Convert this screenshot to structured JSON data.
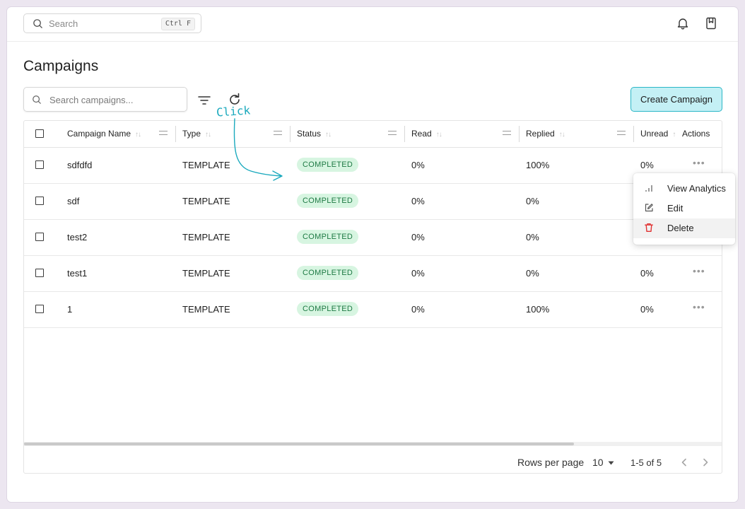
{
  "topbar": {
    "search_placeholder": "Search",
    "search_shortcut": "Ctrl F",
    "icons": [
      "bell-icon",
      "bookmark-icon"
    ]
  },
  "page": {
    "title": "Campaigns",
    "search_placeholder": "Search campaigns...",
    "create_label": "Create Campaign",
    "annotation": "Click"
  },
  "table": {
    "headers": {
      "name": "Campaign Name",
      "type": "Type",
      "status": "Status",
      "read": "Read",
      "replied": "Replied",
      "unread": "Unread",
      "actions": "Actions"
    },
    "rows": [
      {
        "name": "sdfdfd",
        "type": "TEMPLATE",
        "status": "COMPLETED",
        "read": "0%",
        "replied": "100%",
        "unread": "0%"
      },
      {
        "name": "sdf",
        "type": "TEMPLATE",
        "status": "COMPLETED",
        "read": "0%",
        "replied": "0%",
        "unread": ""
      },
      {
        "name": "test2",
        "type": "TEMPLATE",
        "status": "COMPLETED",
        "read": "0%",
        "replied": "0%",
        "unread": ""
      },
      {
        "name": "test1",
        "type": "TEMPLATE",
        "status": "COMPLETED",
        "read": "0%",
        "replied": "0%",
        "unread": "0%"
      },
      {
        "name": "1",
        "type": "TEMPLATE",
        "status": "COMPLETED",
        "read": "0%",
        "replied": "100%",
        "unread": "0%"
      }
    ],
    "actions_glyph": "•••"
  },
  "context_menu": {
    "items": [
      {
        "label": "View Analytics",
        "icon": "bar-chart-icon"
      },
      {
        "label": "Edit",
        "icon": "edit-icon"
      },
      {
        "label": "Delete",
        "icon": "trash-icon",
        "color": "#e03131"
      }
    ]
  },
  "pagination": {
    "rows_per_page_label": "Rows per page",
    "rows_per_page": "10",
    "range": "1-5 of 5"
  },
  "colors": {
    "accent": "#2ab6c6",
    "accent_bg": "#c4f0f5",
    "badge_bg": "#d7f5e1",
    "badge_text": "#1e7a44",
    "danger": "#e03131"
  }
}
